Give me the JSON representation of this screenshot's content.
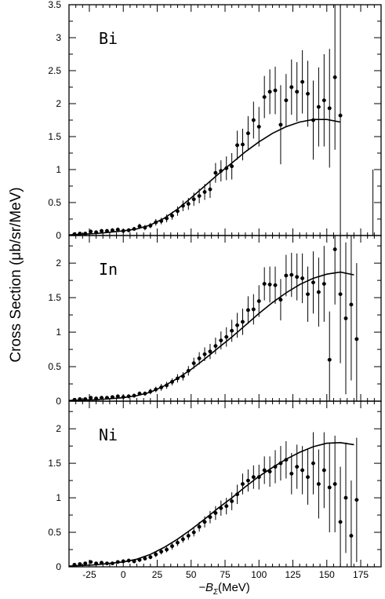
{
  "chart_data": {
    "type": "scatter",
    "layout": "three vertically stacked panels sharing one x axis",
    "ylabel": "Cross Section (μb/sr/MeV)",
    "xlabel_prefix": "−B",
    "xlabel_subscript": "Σ",
    "xlabel_units": "(MeV)",
    "xlim": [
      -40,
      190
    ],
    "x_ticks": [
      -25,
      0,
      25,
      50,
      75,
      100,
      125,
      150,
      175
    ],
    "x_tick_labels": [
      "-25",
      "0",
      "25",
      "50",
      "75",
      "100",
      "125",
      "150",
      "175"
    ],
    "grid": false,
    "legend": "none",
    "marker": "filled dot with vertical error bar",
    "line": "solid smooth curve (calculation)",
    "panels": [
      {
        "label": "Bi",
        "ylim": [
          0,
          3.5
        ],
        "y_ticks": [
          0,
          0.5,
          1,
          1.5,
          2,
          2.5,
          3,
          3.5
        ],
        "y_tick_labels": [
          "0",
          "0.5",
          "1",
          "1.5",
          "2",
          "2.5",
          "3",
          "3.5"
        ],
        "points": [
          {
            "x": -36,
            "y": 0.02,
            "err": 0.02
          },
          {
            "x": -32,
            "y": 0.03,
            "err": 0.02
          },
          {
            "x": -28,
            "y": 0.03,
            "err": 0.02
          },
          {
            "x": -24,
            "y": 0.06,
            "err": 0.03
          },
          {
            "x": -20,
            "y": 0.05,
            "err": 0.02
          },
          {
            "x": -16,
            "y": 0.07,
            "err": 0.03
          },
          {
            "x": -12,
            "y": 0.07,
            "err": 0.03
          },
          {
            "x": -8,
            "y": 0.08,
            "err": 0.03
          },
          {
            "x": -4,
            "y": 0.09,
            "err": 0.03
          },
          {
            "x": 0,
            "y": 0.07,
            "err": 0.03
          },
          {
            "x": 4,
            "y": 0.08,
            "err": 0.03
          },
          {
            "x": 8,
            "y": 0.1,
            "err": 0.03
          },
          {
            "x": 12,
            "y": 0.14,
            "err": 0.04
          },
          {
            "x": 16,
            "y": 0.12,
            "err": 0.04
          },
          {
            "x": 20,
            "y": 0.15,
            "err": 0.04
          },
          {
            "x": 24,
            "y": 0.2,
            "err": 0.05
          },
          {
            "x": 28,
            "y": 0.22,
            "err": 0.05
          },
          {
            "x": 32,
            "y": 0.26,
            "err": 0.06
          },
          {
            "x": 36,
            "y": 0.3,
            "err": 0.06
          },
          {
            "x": 40,
            "y": 0.37,
            "err": 0.07
          },
          {
            "x": 44,
            "y": 0.45,
            "err": 0.08
          },
          {
            "x": 48,
            "y": 0.48,
            "err": 0.09
          },
          {
            "x": 52,
            "y": 0.55,
            "err": 0.1
          },
          {
            "x": 56,
            "y": 0.6,
            "err": 0.11
          },
          {
            "x": 60,
            "y": 0.66,
            "err": 0.12
          },
          {
            "x": 64,
            "y": 0.7,
            "err": 0.13
          },
          {
            "x": 68,
            "y": 0.95,
            "err": 0.15
          },
          {
            "x": 72,
            "y": 0.98,
            "err": 0.16
          },
          {
            "x": 76,
            "y": 1.02,
            "err": 0.18
          },
          {
            "x": 80,
            "y": 1.05,
            "err": 0.2
          },
          {
            "x": 84,
            "y": 1.37,
            "err": 0.22
          },
          {
            "x": 88,
            "y": 1.38,
            "err": 0.24
          },
          {
            "x": 92,
            "y": 1.55,
            "err": 0.26
          },
          {
            "x": 96,
            "y": 1.75,
            "err": 0.28
          },
          {
            "x": 100,
            "y": 1.65,
            "err": 0.3
          },
          {
            "x": 104,
            "y": 2.1,
            "err": 0.32
          },
          {
            "x": 108,
            "y": 2.18,
            "err": 0.34
          },
          {
            "x": 112,
            "y": 2.2,
            "err": 0.36
          },
          {
            "x": 116,
            "y": 1.68,
            "err": 0.6
          },
          {
            "x": 120,
            "y": 2.05,
            "err": 0.4
          },
          {
            "x": 124,
            "y": 2.25,
            "err": 0.42
          },
          {
            "x": 128,
            "y": 2.18,
            "err": 0.45
          },
          {
            "x": 132,
            "y": 2.33,
            "err": 0.48
          },
          {
            "x": 136,
            "y": 2.15,
            "err": 0.5
          },
          {
            "x": 140,
            "y": 1.75,
            "err": 0.6
          },
          {
            "x": 144,
            "y": 1.95,
            "err": 0.6
          },
          {
            "x": 148,
            "y": 2.05,
            "err": 0.7
          },
          {
            "x": 152,
            "y": 1.93,
            "err": 0.9
          },
          {
            "x": 156,
            "y": 2.4,
            "err": 1.1
          },
          {
            "x": 160,
            "y": 1.82,
            "err": 1.8
          }
        ],
        "curve": [
          [
            -40,
            0.01
          ],
          [
            -20,
            0.03
          ],
          [
            0,
            0.07
          ],
          [
            10,
            0.1
          ],
          [
            20,
            0.16
          ],
          [
            30,
            0.26
          ],
          [
            40,
            0.4
          ],
          [
            50,
            0.57
          ],
          [
            60,
            0.75
          ],
          [
            70,
            0.93
          ],
          [
            80,
            1.1
          ],
          [
            90,
            1.27
          ],
          [
            100,
            1.42
          ],
          [
            110,
            1.55
          ],
          [
            120,
            1.65
          ],
          [
            130,
            1.72
          ],
          [
            140,
            1.76
          ],
          [
            150,
            1.76
          ],
          [
            160,
            1.72
          ]
        ],
        "stray_segments": [
          {
            "x": 184,
            "y_low": 0,
            "y_high": 1.0
          }
        ]
      },
      {
        "label": "In",
        "ylim": [
          0,
          2.4
        ],
        "y_ticks": [
          0,
          0.5,
          1,
          1.5,
          2
        ],
        "y_tick_labels": [
          "0",
          "0.5",
          "1",
          "1.5",
          "2"
        ],
        "points": [
          {
            "x": -36,
            "y": 0.02,
            "err": 0.02
          },
          {
            "x": -32,
            "y": 0.03,
            "err": 0.02
          },
          {
            "x": -28,
            "y": 0.03,
            "err": 0.02
          },
          {
            "x": -24,
            "y": 0.05,
            "err": 0.02
          },
          {
            "x": -20,
            "y": 0.04,
            "err": 0.02
          },
          {
            "x": -16,
            "y": 0.05,
            "err": 0.02
          },
          {
            "x": -12,
            "y": 0.05,
            "err": 0.02
          },
          {
            "x": -8,
            "y": 0.06,
            "err": 0.02
          },
          {
            "x": -4,
            "y": 0.07,
            "err": 0.03
          },
          {
            "x": 0,
            "y": 0.06,
            "err": 0.03
          },
          {
            "x": 4,
            "y": 0.07,
            "err": 0.03
          },
          {
            "x": 8,
            "y": 0.08,
            "err": 0.03
          },
          {
            "x": 12,
            "y": 0.11,
            "err": 0.03
          },
          {
            "x": 16,
            "y": 0.11,
            "err": 0.03
          },
          {
            "x": 20,
            "y": 0.14,
            "err": 0.04
          },
          {
            "x": 24,
            "y": 0.17,
            "err": 0.04
          },
          {
            "x": 28,
            "y": 0.2,
            "err": 0.05
          },
          {
            "x": 32,
            "y": 0.23,
            "err": 0.05
          },
          {
            "x": 36,
            "y": 0.28,
            "err": 0.05
          },
          {
            "x": 40,
            "y": 0.33,
            "err": 0.06
          },
          {
            "x": 44,
            "y": 0.36,
            "err": 0.06
          },
          {
            "x": 48,
            "y": 0.44,
            "err": 0.07
          },
          {
            "x": 52,
            "y": 0.55,
            "err": 0.08
          },
          {
            "x": 56,
            "y": 0.62,
            "err": 0.09
          },
          {
            "x": 60,
            "y": 0.68,
            "err": 0.1
          },
          {
            "x": 64,
            "y": 0.72,
            "err": 0.11
          },
          {
            "x": 68,
            "y": 0.8,
            "err": 0.12
          },
          {
            "x": 72,
            "y": 0.88,
            "err": 0.13
          },
          {
            "x": 76,
            "y": 0.93,
            "err": 0.14
          },
          {
            "x": 80,
            "y": 1.02,
            "err": 0.16
          },
          {
            "x": 84,
            "y": 1.1,
            "err": 0.18
          },
          {
            "x": 88,
            "y": 1.15,
            "err": 0.19
          },
          {
            "x": 92,
            "y": 1.32,
            "err": 0.2
          },
          {
            "x": 96,
            "y": 1.33,
            "err": 0.22
          },
          {
            "x": 100,
            "y": 1.45,
            "err": 0.23
          },
          {
            "x": 104,
            "y": 1.7,
            "err": 0.24
          },
          {
            "x": 108,
            "y": 1.69,
            "err": 0.26
          },
          {
            "x": 112,
            "y": 1.68,
            "err": 0.27
          },
          {
            "x": 116,
            "y": 1.47,
            "err": 0.3
          },
          {
            "x": 120,
            "y": 1.82,
            "err": 0.3
          },
          {
            "x": 124,
            "y": 1.83,
            "err": 0.32
          },
          {
            "x": 128,
            "y": 1.8,
            "err": 0.34
          },
          {
            "x": 132,
            "y": 1.78,
            "err": 0.36
          },
          {
            "x": 136,
            "y": 1.55,
            "err": 0.4
          },
          {
            "x": 140,
            "y": 1.72,
            "err": 0.45
          },
          {
            "x": 144,
            "y": 1.58,
            "err": 0.5
          },
          {
            "x": 148,
            "y": 1.7,
            "err": 0.55
          },
          {
            "x": 152,
            "y": 0.6,
            "err": 0.7
          },
          {
            "x": 156,
            "y": 2.2,
            "err": 0.8
          },
          {
            "x": 160,
            "y": 1.55,
            "err": 1.0
          },
          {
            "x": 164,
            "y": 1.2,
            "err": 1.1
          },
          {
            "x": 168,
            "y": 1.4,
            "err": 1.1
          },
          {
            "x": 172,
            "y": 0.9,
            "err": 1.1
          }
        ],
        "curve": [
          [
            -40,
            0.01
          ],
          [
            -20,
            0.02
          ],
          [
            0,
            0.05
          ],
          [
            10,
            0.08
          ],
          [
            20,
            0.13
          ],
          [
            30,
            0.22
          ],
          [
            40,
            0.33
          ],
          [
            50,
            0.46
          ],
          [
            60,
            0.61
          ],
          [
            70,
            0.77
          ],
          [
            80,
            0.93
          ],
          [
            90,
            1.1
          ],
          [
            100,
            1.27
          ],
          [
            110,
            1.43
          ],
          [
            120,
            1.57
          ],
          [
            130,
            1.69
          ],
          [
            140,
            1.78
          ],
          [
            150,
            1.84
          ],
          [
            160,
            1.87
          ],
          [
            170,
            1.83
          ]
        ]
      },
      {
        "label": "Ni",
        "ylim": [
          0,
          2.4
        ],
        "y_ticks": [
          0,
          0.5,
          1,
          1.5,
          2
        ],
        "y_tick_labels": [
          "0",
          "0.5",
          "1",
          "1.5",
          "2"
        ],
        "points": [
          {
            "x": -36,
            "y": 0.03,
            "err": 0.02
          },
          {
            "x": -32,
            "y": 0.04,
            "err": 0.02
          },
          {
            "x": -28,
            "y": 0.05,
            "err": 0.02
          },
          {
            "x": -24,
            "y": 0.07,
            "err": 0.02
          },
          {
            "x": -20,
            "y": 0.05,
            "err": 0.02
          },
          {
            "x": -16,
            "y": 0.06,
            "err": 0.02
          },
          {
            "x": -12,
            "y": 0.05,
            "err": 0.02
          },
          {
            "x": -8,
            "y": 0.05,
            "err": 0.02
          },
          {
            "x": -4,
            "y": 0.07,
            "err": 0.02
          },
          {
            "x": 0,
            "y": 0.08,
            "err": 0.03
          },
          {
            "x": 4,
            "y": 0.09,
            "err": 0.03
          },
          {
            "x": 8,
            "y": 0.08,
            "err": 0.03
          },
          {
            "x": 12,
            "y": 0.1,
            "err": 0.03
          },
          {
            "x": 16,
            "y": 0.12,
            "err": 0.03
          },
          {
            "x": 20,
            "y": 0.14,
            "err": 0.03
          },
          {
            "x": 24,
            "y": 0.18,
            "err": 0.04
          },
          {
            "x": 28,
            "y": 0.22,
            "err": 0.04
          },
          {
            "x": 32,
            "y": 0.25,
            "err": 0.04
          },
          {
            "x": 36,
            "y": 0.3,
            "err": 0.05
          },
          {
            "x": 40,
            "y": 0.35,
            "err": 0.05
          },
          {
            "x": 44,
            "y": 0.4,
            "err": 0.05
          },
          {
            "x": 48,
            "y": 0.45,
            "err": 0.06
          },
          {
            "x": 52,
            "y": 0.5,
            "err": 0.06
          },
          {
            "x": 56,
            "y": 0.58,
            "err": 0.07
          },
          {
            "x": 60,
            "y": 0.65,
            "err": 0.08
          },
          {
            "x": 64,
            "y": 0.72,
            "err": 0.09
          },
          {
            "x": 68,
            "y": 0.78,
            "err": 0.1
          },
          {
            "x": 72,
            "y": 0.85,
            "err": 0.11
          },
          {
            "x": 76,
            "y": 0.88,
            "err": 0.12
          },
          {
            "x": 80,
            "y": 0.95,
            "err": 0.13
          },
          {
            "x": 84,
            "y": 1.05,
            "err": 0.14
          },
          {
            "x": 88,
            "y": 1.2,
            "err": 0.15
          },
          {
            "x": 92,
            "y": 1.25,
            "err": 0.16
          },
          {
            "x": 96,
            "y": 1.3,
            "err": 0.17
          },
          {
            "x": 100,
            "y": 1.3,
            "err": 0.18
          },
          {
            "x": 104,
            "y": 1.4,
            "err": 0.2
          },
          {
            "x": 108,
            "y": 1.38,
            "err": 0.22
          },
          {
            "x": 112,
            "y": 1.45,
            "err": 0.24
          },
          {
            "x": 116,
            "y": 1.5,
            "err": 0.25
          },
          {
            "x": 120,
            "y": 1.55,
            "err": 0.27
          },
          {
            "x": 124,
            "y": 1.35,
            "err": 0.3
          },
          {
            "x": 128,
            "y": 1.45,
            "err": 0.32
          },
          {
            "x": 132,
            "y": 1.4,
            "err": 0.35
          },
          {
            "x": 136,
            "y": 1.3,
            "err": 0.4
          },
          {
            "x": 140,
            "y": 1.5,
            "err": 0.45
          },
          {
            "x": 144,
            "y": 1.2,
            "err": 0.5
          },
          {
            "x": 148,
            "y": 1.4,
            "err": 0.55
          },
          {
            "x": 152,
            "y": 1.15,
            "err": 0.65
          },
          {
            "x": 156,
            "y": 1.2,
            "err": 0.7
          },
          {
            "x": 160,
            "y": 0.65,
            "err": 0.8
          },
          {
            "x": 164,
            "y": 1.0,
            "err": 0.8
          },
          {
            "x": 168,
            "y": 0.45,
            "err": 0.8
          },
          {
            "x": 172,
            "y": 0.97,
            "err": 0.9
          }
        ],
        "curve": [
          [
            -40,
            0.01
          ],
          [
            -20,
            0.03
          ],
          [
            0,
            0.07
          ],
          [
            10,
            0.11
          ],
          [
            20,
            0.18
          ],
          [
            30,
            0.28
          ],
          [
            40,
            0.4
          ],
          [
            50,
            0.54
          ],
          [
            60,
            0.69
          ],
          [
            70,
            0.85
          ],
          [
            80,
            1.0
          ],
          [
            90,
            1.16
          ],
          [
            100,
            1.31
          ],
          [
            110,
            1.44
          ],
          [
            120,
            1.56
          ],
          [
            130,
            1.66
          ],
          [
            140,
            1.74
          ],
          [
            150,
            1.79
          ],
          [
            160,
            1.8
          ],
          [
            170,
            1.77
          ]
        ]
      }
    ]
  }
}
